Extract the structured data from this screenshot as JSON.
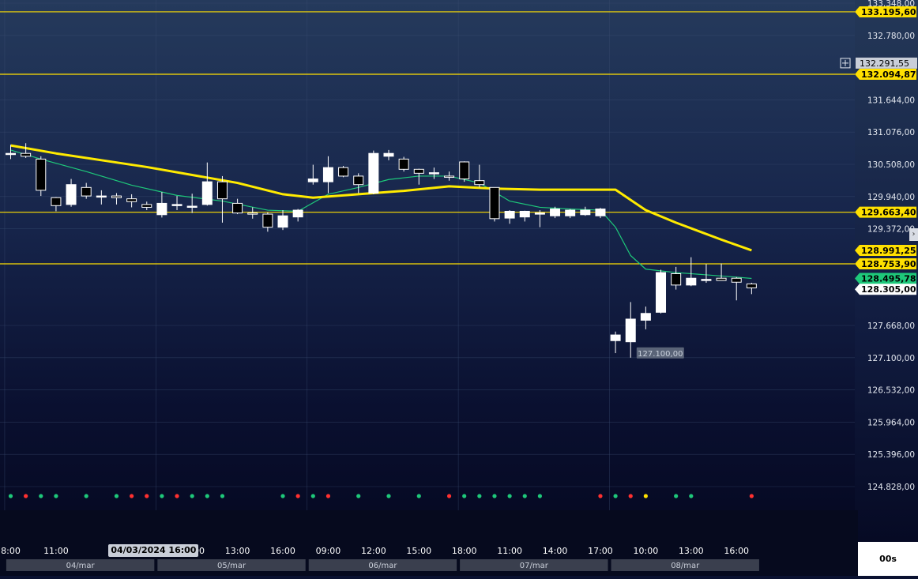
{
  "chart_data": {
    "type": "candlestick",
    "ylim": [
      124450,
      133400
    ],
    "price_ticks": [
      "133.348,00",
      "132.780,00",
      "131.644,00",
      "131.076,00",
      "130.508,00",
      "129.940,00",
      "129.372,00",
      "127.668,00",
      "127.100,00",
      "126.532,00",
      "125.964,00",
      "125.396,00",
      "124.828,00"
    ],
    "tick_values": [
      133348,
      132780,
      131644,
      131076,
      130508,
      129940,
      129372,
      127668,
      127100,
      126532,
      125964,
      125396,
      124828
    ],
    "time_labels": [
      "8:00",
      "11:00",
      "10:00",
      "13:00",
      "16:00",
      "09:00",
      "12:00",
      "15:00",
      "18:00",
      "11:00",
      "14:00",
      "17:00",
      "10:00",
      "13:00",
      "16:00"
    ],
    "time_slots": [
      0,
      3,
      12,
      15,
      18,
      21,
      24,
      27,
      30,
      33,
      36,
      39,
      42,
      45,
      48
    ],
    "crosshair_time": "04/03/2024 16:00",
    "crosshair_slot": 9.5,
    "day_labels": [
      "04/mar",
      "05/mar",
      "06/mar",
      "07/mar",
      "08/mar"
    ],
    "day_ranges": [
      [
        0,
        10
      ],
      [
        10,
        20
      ],
      [
        20,
        30
      ],
      [
        30,
        40
      ],
      [
        40,
        50
      ]
    ],
    "horizontal_lines": [
      {
        "value": 133195.6,
        "label": "133.195,60"
      },
      {
        "value": 132094.87,
        "label": "132.094,87"
      },
      {
        "value": 129663.4,
        "label": "129.663,40"
      },
      {
        "value": 128753.9,
        "label": "128.753,90"
      }
    ],
    "price_tags": [
      {
        "value": 132291.55,
        "label": "132.291,55",
        "style": "crosshair"
      },
      {
        "value": 128991.25,
        "label": "128.991,25",
        "style": "yellow"
      },
      {
        "value": 128495.78,
        "label": "128.495,78",
        "style": "green"
      },
      {
        "value": 128305.0,
        "label": "128.305,00",
        "style": "white"
      }
    ],
    "min_annotation": {
      "slot": 41.5,
      "value": 127100,
      "label": "127.100,00"
    },
    "candles": [
      {
        "slot": 0,
        "o": 130700,
        "h": 130850,
        "l": 130600,
        "c": 130700
      },
      {
        "slot": 1,
        "o": 130700,
        "h": 130880,
        "l": 130620,
        "c": 130650
      },
      {
        "slot": 2,
        "o": 130600,
        "h": 130650,
        "l": 129950,
        "c": 130050
      },
      {
        "slot": 3,
        "o": 129920,
        "h": 129930,
        "l": 129680,
        "c": 129780
      },
      {
        "slot": 4,
        "o": 129800,
        "h": 130250,
        "l": 129760,
        "c": 130150
      },
      {
        "slot": 5,
        "o": 130100,
        "h": 130180,
        "l": 129900,
        "c": 129950
      },
      {
        "slot": 6,
        "o": 129950,
        "h": 130050,
        "l": 129800,
        "c": 129950
      },
      {
        "slot": 7,
        "o": 129950,
        "h": 130000,
        "l": 129800,
        "c": 129920
      },
      {
        "slot": 8,
        "o": 129900,
        "h": 129980,
        "l": 129750,
        "c": 129850
      },
      {
        "slot": 9,
        "o": 129800,
        "h": 129850,
        "l": 129700,
        "c": 129750
      },
      {
        "slot": 10,
        "o": 129620,
        "h": 130020,
        "l": 129570,
        "c": 129820
      },
      {
        "slot": 11,
        "o": 129800,
        "h": 129950,
        "l": 129700,
        "c": 129800
      },
      {
        "slot": 12,
        "o": 129760,
        "h": 129990,
        "l": 129650,
        "c": 129770
      },
      {
        "slot": 13,
        "o": 129800,
        "h": 130540,
        "l": 129780,
        "c": 130200
      },
      {
        "slot": 14,
        "o": 130200,
        "h": 130300,
        "l": 129480,
        "c": 129900
      },
      {
        "slot": 15,
        "o": 129820,
        "h": 129900,
        "l": 129630,
        "c": 129650
      },
      {
        "slot": 16,
        "o": 129650,
        "h": 129750,
        "l": 129550,
        "c": 129640
      },
      {
        "slot": 17,
        "o": 129630,
        "h": 129660,
        "l": 129320,
        "c": 129400
      },
      {
        "slot": 18,
        "o": 129400,
        "h": 129700,
        "l": 129350,
        "c": 129600
      },
      {
        "slot": 19,
        "o": 129580,
        "h": 129720,
        "l": 129500,
        "c": 129700
      },
      {
        "slot": 20,
        "o": 130200,
        "h": 130500,
        "l": 130150,
        "c": 130250
      },
      {
        "slot": 21,
        "o": 130200,
        "h": 130650,
        "l": 130000,
        "c": 130450
      },
      {
        "slot": 22,
        "o": 130450,
        "h": 130480,
        "l": 130280,
        "c": 130300
      },
      {
        "slot": 23,
        "o": 130300,
        "h": 130350,
        "l": 130000,
        "c": 130150
      },
      {
        "slot": 24,
        "o": 130000,
        "h": 130750,
        "l": 129980,
        "c": 130700
      },
      {
        "slot": 25,
        "o": 130650,
        "h": 130760,
        "l": 130580,
        "c": 130700
      },
      {
        "slot": 26,
        "o": 130600,
        "h": 130640,
        "l": 130380,
        "c": 130420
      },
      {
        "slot": 27,
        "o": 130420,
        "h": 130430,
        "l": 130150,
        "c": 130350
      },
      {
        "slot": 28,
        "o": 130350,
        "h": 130450,
        "l": 130250,
        "c": 130360
      },
      {
        "slot": 29,
        "o": 130300,
        "h": 130380,
        "l": 130220,
        "c": 130280
      },
      {
        "slot": 30,
        "o": 130550,
        "h": 130560,
        "l": 130200,
        "c": 130250
      },
      {
        "slot": 31,
        "o": 130220,
        "h": 130500,
        "l": 130100,
        "c": 130150
      },
      {
        "slot": 32,
        "o": 130100,
        "h": 130100,
        "l": 129500,
        "c": 129550
      },
      {
        "slot": 33,
        "o": 129560,
        "h": 129700,
        "l": 129460,
        "c": 129680
      },
      {
        "slot": 34,
        "o": 129580,
        "h": 129690,
        "l": 129500,
        "c": 129680
      },
      {
        "slot": 35,
        "o": 129650,
        "h": 129700,
        "l": 129400,
        "c": 129650
      },
      {
        "slot": 36,
        "o": 129600,
        "h": 129760,
        "l": 129560,
        "c": 129720
      },
      {
        "slot": 37,
        "o": 129600,
        "h": 129720,
        "l": 129560,
        "c": 129700
      },
      {
        "slot": 38,
        "o": 129620,
        "h": 129760,
        "l": 129600,
        "c": 129700
      },
      {
        "slot": 39,
        "o": 129600,
        "h": 129740,
        "l": 129560,
        "c": 129720
      },
      {
        "slot": 40,
        "o": 127400,
        "h": 127560,
        "l": 127180,
        "c": 127500
      },
      {
        "slot": 41,
        "o": 127380,
        "h": 128080,
        "l": 127100,
        "c": 127780
      },
      {
        "slot": 42,
        "o": 127760,
        "h": 128000,
        "l": 127600,
        "c": 127880
      },
      {
        "slot": 43,
        "o": 127900,
        "h": 128650,
        "l": 127880,
        "c": 128600
      },
      {
        "slot": 44,
        "o": 128580,
        "h": 128700,
        "l": 128300,
        "c": 128380
      },
      {
        "slot": 45,
        "o": 128380,
        "h": 128870,
        "l": 128360,
        "c": 128500
      },
      {
        "slot": 46,
        "o": 128470,
        "h": 128750,
        "l": 128420,
        "c": 128480
      },
      {
        "slot": 47,
        "o": 128500,
        "h": 128760,
        "l": 128460,
        "c": 128460
      },
      {
        "slot": 48,
        "o": 128500,
        "h": 128520,
        "l": 128110,
        "c": 128430
      },
      {
        "slot": 49,
        "o": 128400,
        "h": 128420,
        "l": 128220,
        "c": 128330
      }
    ],
    "ma_slow": {
      "color": "#ffeb00",
      "points": [
        [
          0,
          130840
        ],
        [
          3,
          130700
        ],
        [
          6,
          130580
        ],
        [
          9,
          130460
        ],
        [
          12,
          130320
        ],
        [
          15,
          130180
        ],
        [
          18,
          129980
        ],
        [
          20,
          129920
        ],
        [
          23,
          129980
        ],
        [
          26,
          130040
        ],
        [
          29,
          130120
        ],
        [
          32,
          130080
        ],
        [
          35,
          130060
        ],
        [
          38,
          130060
        ],
        [
          40,
          130060
        ],
        [
          42,
          129700
        ],
        [
          44,
          129480
        ],
        [
          47,
          129180
        ],
        [
          49,
          128991
        ]
      ]
    },
    "ma_fast": {
      "color": "#1ec87a",
      "points": [
        [
          0,
          130760
        ],
        [
          2,
          130600
        ],
        [
          5,
          130380
        ],
        [
          8,
          130140
        ],
        [
          11,
          129960
        ],
        [
          14,
          129860
        ],
        [
          17,
          129700
        ],
        [
          19,
          129680
        ],
        [
          21,
          129980
        ],
        [
          23,
          130100
        ],
        [
          25,
          130240
        ],
        [
          27,
          130300
        ],
        [
          29,
          130300
        ],
        [
          31,
          130180
        ],
        [
          33,
          129860
        ],
        [
          35,
          129750
        ],
        [
          37,
          129720
        ],
        [
          39,
          129700
        ],
        [
          40,
          129400
        ],
        [
          41,
          128900
        ],
        [
          42,
          128660
        ],
        [
          44,
          128600
        ],
        [
          46,
          128560
        ],
        [
          48,
          128520
        ],
        [
          49,
          128496
        ]
      ]
    },
    "signal_dots": [
      {
        "slot": 0,
        "c": "g"
      },
      {
        "slot": 1,
        "c": "r"
      },
      {
        "slot": 2,
        "c": "g"
      },
      {
        "slot": 3,
        "c": "g"
      },
      {
        "slot": 5,
        "c": "g"
      },
      {
        "slot": 7,
        "c": "g"
      },
      {
        "slot": 8,
        "c": "r"
      },
      {
        "slot": 9,
        "c": "r"
      },
      {
        "slot": 10,
        "c": "g"
      },
      {
        "slot": 11,
        "c": "r"
      },
      {
        "slot": 12,
        "c": "g"
      },
      {
        "slot": 13,
        "c": "g"
      },
      {
        "slot": 14,
        "c": "g"
      },
      {
        "slot": 18,
        "c": "g"
      },
      {
        "slot": 19,
        "c": "r"
      },
      {
        "slot": 20,
        "c": "g"
      },
      {
        "slot": 21,
        "c": "r"
      },
      {
        "slot": 23,
        "c": "g"
      },
      {
        "slot": 25,
        "c": "g"
      },
      {
        "slot": 27,
        "c": "g"
      },
      {
        "slot": 29,
        "c": "r"
      },
      {
        "slot": 30,
        "c": "g"
      },
      {
        "slot": 31,
        "c": "g"
      },
      {
        "slot": 32,
        "c": "g"
      },
      {
        "slot": 33,
        "c": "g"
      },
      {
        "slot": 34,
        "c": "g"
      },
      {
        "slot": 35,
        "c": "g"
      },
      {
        "slot": 39,
        "c": "r"
      },
      {
        "slot": 40,
        "c": "g"
      },
      {
        "slot": 41,
        "c": "r"
      },
      {
        "slot": 42,
        "c": "y"
      },
      {
        "slot": 44,
        "c": "g"
      },
      {
        "slot": 45,
        "c": "g"
      },
      {
        "slot": 49,
        "c": "r"
      }
    ]
  },
  "footer": {
    "corner_label": "00s"
  },
  "icons": {
    "crosshair": "crosshair-icon",
    "scroll": "chevron-right-icon"
  }
}
